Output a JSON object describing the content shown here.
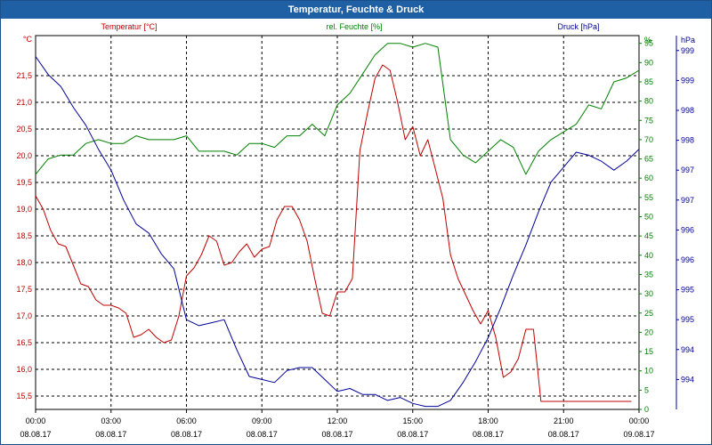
{
  "window": {
    "title": "Temperatur, Feuchte & Druck"
  },
  "chart_data": {
    "type": "line",
    "title": "Temperatur, Feuchte & Druck",
    "colors": {
      "temp": "#c00000",
      "hum": "#008000",
      "press": "#000099",
      "grid": "#000000"
    },
    "x_ticks": [
      {
        "time": "00:00",
        "date": "08.08.17"
      },
      {
        "time": "03:00",
        "date": "08.08.17"
      },
      {
        "time": "06:00",
        "date": "08.08.17"
      },
      {
        "time": "09:00",
        "date": "08.08.17"
      },
      {
        "time": "12:00",
        "date": "08.08.17"
      },
      {
        "time": "15:00",
        "date": "08.08.17"
      },
      {
        "time": "18:00",
        "date": "08.08.17"
      },
      {
        "time": "21:00",
        "date": "08.08.17"
      },
      {
        "time": "00:00",
        "date": "09.08.17"
      }
    ],
    "x_range_hours": [
      0,
      24
    ],
    "axes": {
      "temp": {
        "label": "Temperatur [°C]",
        "unit": "°C",
        "range": [
          15.25,
          22.25
        ],
        "ticks": [
          "15,5",
          "16,0",
          "16,5",
          "17,0",
          "17,5",
          "18,0",
          "18,5",
          "19,0",
          "19,5",
          "20,0",
          "20,5",
          "21,0",
          "21,5"
        ]
      },
      "hum": {
        "label": "rel. Feuchte [%]",
        "unit": "%",
        "range": [
          0,
          97
        ],
        "ticks": [
          "0",
          "5",
          "10",
          "15",
          "20",
          "25",
          "30",
          "35",
          "40",
          "45",
          "50",
          "55",
          "60",
          "65",
          "70",
          "75",
          "80",
          "85",
          "90",
          "95"
        ]
      },
      "press": {
        "label": "Druck [hPa]",
        "unit": "hPa",
        "range": [
          993.5,
          999.75
        ],
        "ticks": [
          "994",
          "994",
          "995",
          "995",
          "996",
          "996",
          "997",
          "997",
          "998",
          "998",
          "999",
          "999"
        ]
      }
    },
    "grid": true,
    "series": [
      {
        "name": "Temperatur [°C]",
        "axis": "temp",
        "x": [
          0,
          0.3,
          0.6,
          0.9,
          1.2,
          1.5,
          1.8,
          2.1,
          2.4,
          2.7,
          3.0,
          3.3,
          3.6,
          3.9,
          4.2,
          4.5,
          4.8,
          5.1,
          5.4,
          5.7,
          6.0,
          6.3,
          6.6,
          6.9,
          7.2,
          7.5,
          7.8,
          8.1,
          8.4,
          8.7,
          9.0,
          9.3,
          9.6,
          9.9,
          10.2,
          10.5,
          10.8,
          11.1,
          11.4,
          11.7,
          12.0,
          12.3,
          12.6,
          12.9,
          13.2,
          13.5,
          13.8,
          14.1,
          14.4,
          14.7,
          15.0,
          15.3,
          15.6,
          15.9,
          16.2,
          16.5,
          16.8,
          17.1,
          17.4,
          17.7,
          18.0,
          18.3,
          18.6,
          18.9,
          19.2,
          19.5,
          19.8,
          20.1,
          20.4,
          20.7,
          21.0,
          21.3,
          21.6,
          21.9,
          22.2,
          22.5,
          22.8,
          23.1,
          23.4,
          23.7,
          24.0
        ],
        "values": [
          19.25,
          19.0,
          18.6,
          18.35,
          18.3,
          17.95,
          17.6,
          17.55,
          17.3,
          17.2,
          17.2,
          17.15,
          17.05,
          16.6,
          16.65,
          16.75,
          16.6,
          16.5,
          16.55,
          17.0,
          17.75,
          17.9,
          18.15,
          18.5,
          18.4,
          17.95,
          18.0,
          18.2,
          18.35,
          18.1,
          18.25,
          18.3,
          18.8,
          19.05,
          19.05,
          18.8,
          18.4,
          17.7,
          17.05,
          17.0,
          17.45,
          17.45,
          17.7,
          20.1,
          20.8,
          21.45,
          21.7,
          21.6,
          21.0,
          20.3,
          20.55,
          20.0,
          20.3,
          19.75,
          19.2,
          18.15,
          17.7,
          17.4,
          17.1,
          16.85,
          17.1,
          16.6,
          15.85,
          15.95,
          16.2,
          16.75,
          16.75,
          15.4,
          15.4,
          15.4,
          15.4,
          15.4,
          15.4,
          15.4,
          15.4,
          15.4,
          15.4,
          15.4,
          15.4,
          15.4,
          15.4
        ]
      },
      {
        "name": "rel. Feuchte [%]",
        "axis": "hum",
        "x": [
          0,
          0.5,
          1.0,
          1.5,
          2.0,
          2.5,
          3.0,
          3.5,
          4.0,
          4.5,
          5.0,
          5.5,
          6.0,
          6.5,
          7.0,
          7.5,
          8.0,
          8.5,
          9.0,
          9.5,
          10.0,
          10.5,
          11.0,
          11.5,
          12.0,
          12.5,
          13.0,
          13.5,
          14.0,
          14.5,
          15.0,
          15.5,
          16.0,
          16.5,
          17.0,
          17.5,
          18.0,
          18.5,
          19.0,
          19.5,
          20.0,
          20.5,
          21.0,
          21.5,
          22.0,
          22.5,
          23.0,
          23.5,
          24.0
        ],
        "values": [
          61,
          65,
          66,
          66,
          69,
          70,
          69,
          69,
          71,
          70,
          70,
          70,
          71,
          67,
          67,
          67,
          66,
          69,
          69,
          68,
          71,
          71,
          74,
          71,
          79,
          82,
          87,
          92,
          95,
          95,
          94,
          95,
          94,
          70,
          66,
          64,
          67,
          70,
          68,
          61,
          67,
          70,
          72,
          74,
          79,
          78,
          85,
          86,
          88
        ]
      },
      {
        "name": "Druck [hPa]",
        "axis": "press",
        "x": [
          0,
          0.5,
          1.0,
          1.5,
          2.0,
          2.5,
          3.0,
          3.5,
          4.0,
          4.5,
          5.0,
          5.5,
          6.0,
          6.5,
          7.0,
          7.5,
          8.0,
          8.5,
          9.0,
          9.5,
          10.0,
          10.5,
          11.0,
          11.5,
          12.0,
          12.5,
          13.0,
          13.5,
          14.0,
          14.5,
          15.0,
          15.5,
          16.0,
          16.5,
          17.0,
          17.5,
          18.0,
          18.5,
          19.0,
          19.5,
          20.0,
          20.5,
          21.0,
          21.5,
          22.0,
          22.5,
          23.0,
          23.5,
          24.0
        ],
        "values": [
          999.4,
          999.1,
          998.9,
          998.55,
          998.25,
          997.85,
          997.5,
          997.0,
          996.6,
          996.45,
          996.1,
          995.85,
          995.0,
          994.9,
          994.95,
          995.0,
          994.5,
          994.05,
          994.0,
          993.95,
          994.15,
          994.2,
          994.2,
          994.0,
          993.8,
          993.85,
          993.75,
          993.75,
          993.65,
          993.7,
          993.6,
          993.55,
          993.55,
          993.65,
          993.95,
          994.3,
          994.7,
          995.2,
          995.75,
          996.25,
          996.8,
          997.3,
          997.55,
          997.8,
          997.75,
          997.65,
          997.5,
          997.65,
          997.85
        ]
      }
    ]
  }
}
